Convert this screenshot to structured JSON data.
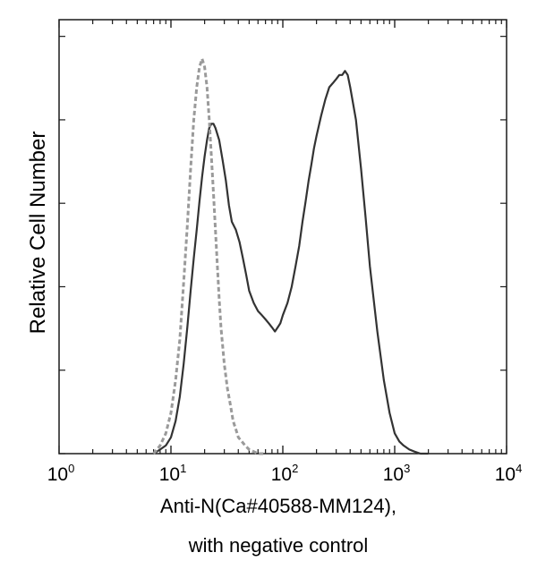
{
  "chart_data": {
    "type": "line",
    "title": "",
    "xlabel": "Anti-N(Ca#40588-MM124),",
    "xlabel_line2": "with negative control",
    "ylabel": "Relative Cell Number",
    "x_scale": "log",
    "xlim": [
      1,
      10000
    ],
    "ylim": [
      0,
      100
    ],
    "x_ticks": [
      {
        "base": "10",
        "exp": "0",
        "value": 1
      },
      {
        "base": "10",
        "exp": "1",
        "value": 10
      },
      {
        "base": "10",
        "exp": "2",
        "value": 100
      },
      {
        "base": "10",
        "exp": "3",
        "value": 1000
      },
      {
        "base": "10",
        "exp": "4",
        "value": 10000
      }
    ],
    "y_tick_count": 5,
    "grid": false,
    "legend": "none",
    "series": [
      {
        "style": "solid",
        "color": "#333333",
        "x": [
          7,
          8,
          9,
          10,
          11,
          12,
          13,
          14,
          15,
          16,
          17,
          18,
          19,
          20,
          21,
          22,
          23,
          24,
          25,
          27,
          29,
          31,
          33,
          35,
          38,
          41,
          44,
          47,
          50,
          55,
          60,
          65,
          70,
          75,
          80,
          85,
          90,
          95,
          100,
          110,
          120,
          130,
          140,
          150,
          160,
          170,
          180,
          190,
          200,
          220,
          240,
          260,
          280,
          300,
          320,
          340,
          360,
          380,
          400,
          450,
          500,
          550,
          600,
          700,
          800,
          900,
          1000,
          1100,
          1200,
          1350,
          1500,
          1700,
          2000
        ],
        "y": [
          0,
          1,
          2,
          4,
          8,
          14,
          22,
          31,
          40,
          48,
          55,
          62,
          68,
          73,
          77,
          80,
          81,
          81,
          80,
          77,
          72,
          67,
          61,
          57,
          55,
          52,
          48,
          44,
          40,
          37,
          35,
          34,
          33,
          32,
          31,
          30,
          31,
          32,
          34,
          37,
          41,
          46,
          51,
          57,
          62,
          67,
          71,
          75,
          78,
          83,
          87,
          90,
          91,
          92,
          93,
          93,
          94,
          93,
          90,
          82,
          70,
          58,
          46,
          30,
          18,
          10,
          5,
          3,
          2,
          1,
          0.5,
          0,
          0
        ]
      },
      {
        "style": "dashed",
        "color": "#9a9a9a",
        "x": [
          7,
          8,
          9,
          10,
          11,
          12,
          13,
          14,
          15,
          16,
          17,
          18,
          19,
          20,
          21,
          22,
          23,
          24,
          25,
          26,
          27,
          28,
          30,
          32,
          34,
          36,
          38,
          40,
          43,
          46,
          50,
          55,
          60,
          70
        ],
        "y": [
          0,
          2,
          5,
          10,
          18,
          28,
          42,
          56,
          70,
          82,
          90,
          95,
          97,
          95,
          90,
          82,
          73,
          64,
          55,
          46,
          38,
          31,
          22,
          16,
          12,
          8,
          6,
          4,
          3,
          2,
          1,
          0.5,
          0,
          0
        ]
      }
    ]
  }
}
